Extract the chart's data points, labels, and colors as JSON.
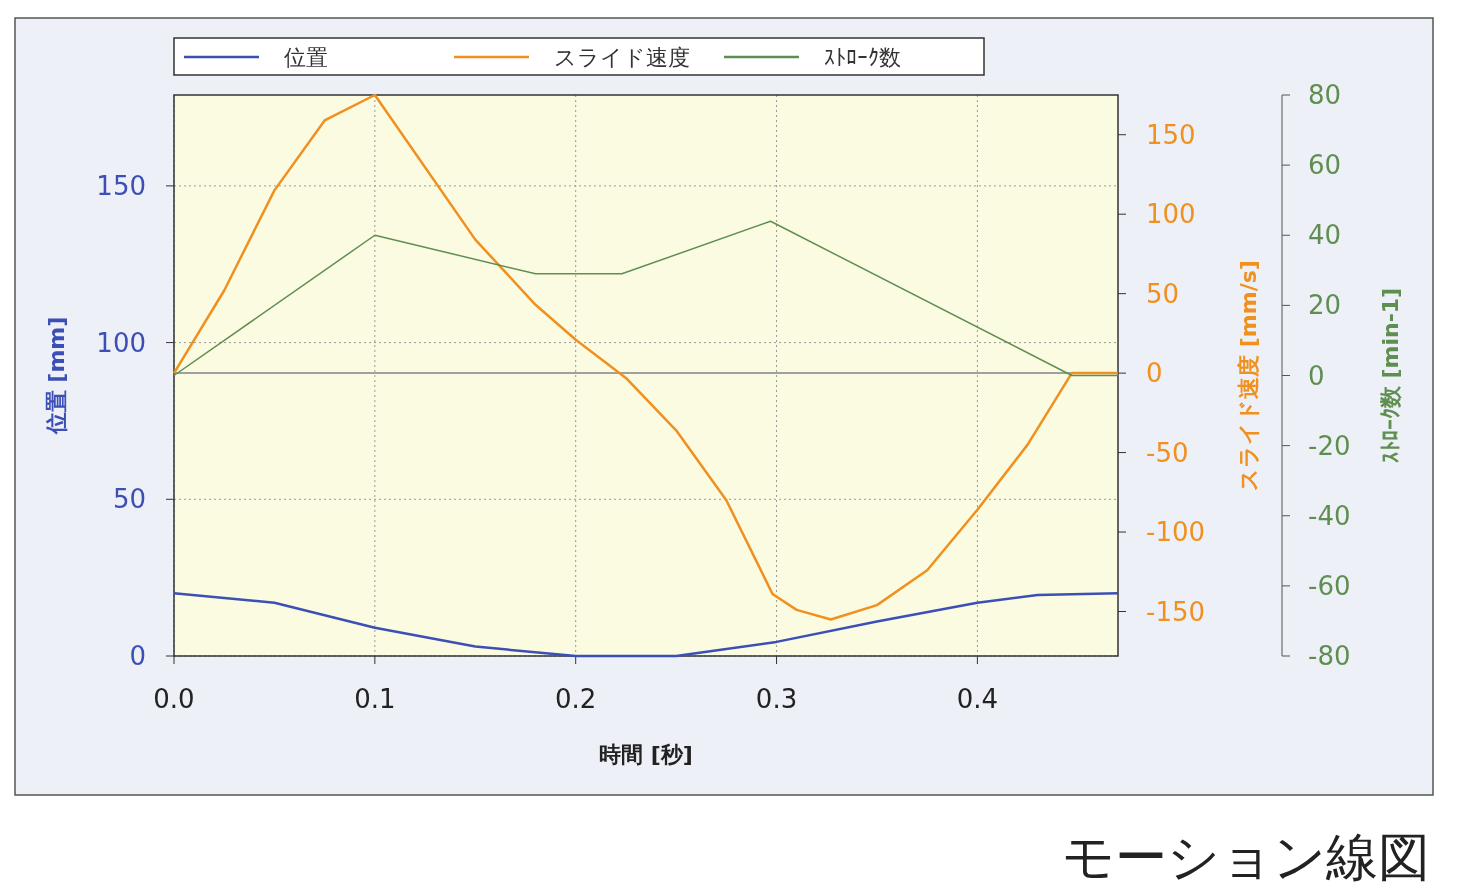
{
  "chart_data": {
    "type": "line",
    "xlabel": "時間 [秒]",
    "ylabel": "位置 [mm]",
    "y2label": "スライド速度 [mm/s]",
    "y3label": "ｽﾄﾛｰｸ数 [min-1]",
    "xlim": [
      0,
      0.47
    ],
    "xticks": [
      {
        "value": 0,
        "label": "0.0"
      },
      0.1,
      0.2,
      0.3,
      0.4
    ],
    "ylim": [
      0,
      179
    ],
    "yticks": [
      0,
      50,
      100,
      150
    ],
    "y2lim": [
      -178,
      175
    ],
    "y2ticks": [
      -150,
      -100,
      -50,
      0,
      50,
      100,
      150
    ],
    "y3lim": [
      -80,
      80
    ],
    "y3ticks": [
      -80,
      -60,
      -40,
      -20,
      0,
      20,
      40,
      60,
      80
    ],
    "grid": true,
    "legend": "top",
    "line_style": "solid",
    "ref_lines": [
      {
        "axis": "y2",
        "value": 0,
        "color": "#a0a0a0"
      }
    ],
    "series": [
      {
        "name": "位置",
        "color": "#3c4fb5",
        "x": [
          0,
          0.05,
          0.1,
          0.15,
          0.2,
          0.25,
          0.3,
          0.35,
          0.4,
          0.43,
          0.47
        ],
        "values": [
          20,
          17,
          9,
          3,
          0,
          0,
          4.5,
          11,
          17,
          19.5,
          20
        ]
      },
      {
        "name": "スライド速度",
        "color": "#f0901e",
        "axis": "y2",
        "x": [
          0,
          0.025,
          0.05,
          0.075,
          0.1,
          0.15,
          0.18,
          0.2,
          0.225,
          0.25,
          0.275,
          0.298,
          0.31,
          0.327,
          0.35,
          0.375,
          0.4,
          0.425,
          0.447,
          0.47
        ],
        "values": [
          0,
          52,
          115,
          159,
          175,
          84,
          43,
          21,
          -3,
          -36,
          -80,
          -139,
          -149,
          -155,
          -146,
          -124,
          -86,
          -45,
          0,
          0
        ]
      },
      {
        "name": "ｽﾄﾛｰｸ数",
        "color": "#5f8f50",
        "axis": "y3",
        "x": [
          0,
          0.1,
          0.18,
          0.223,
          0.297,
          0.447,
          0.47
        ],
        "values": [
          0,
          40,
          29,
          29,
          44,
          0,
          0
        ]
      }
    ],
    "annotations": [
      "モーション線図"
    ]
  }
}
